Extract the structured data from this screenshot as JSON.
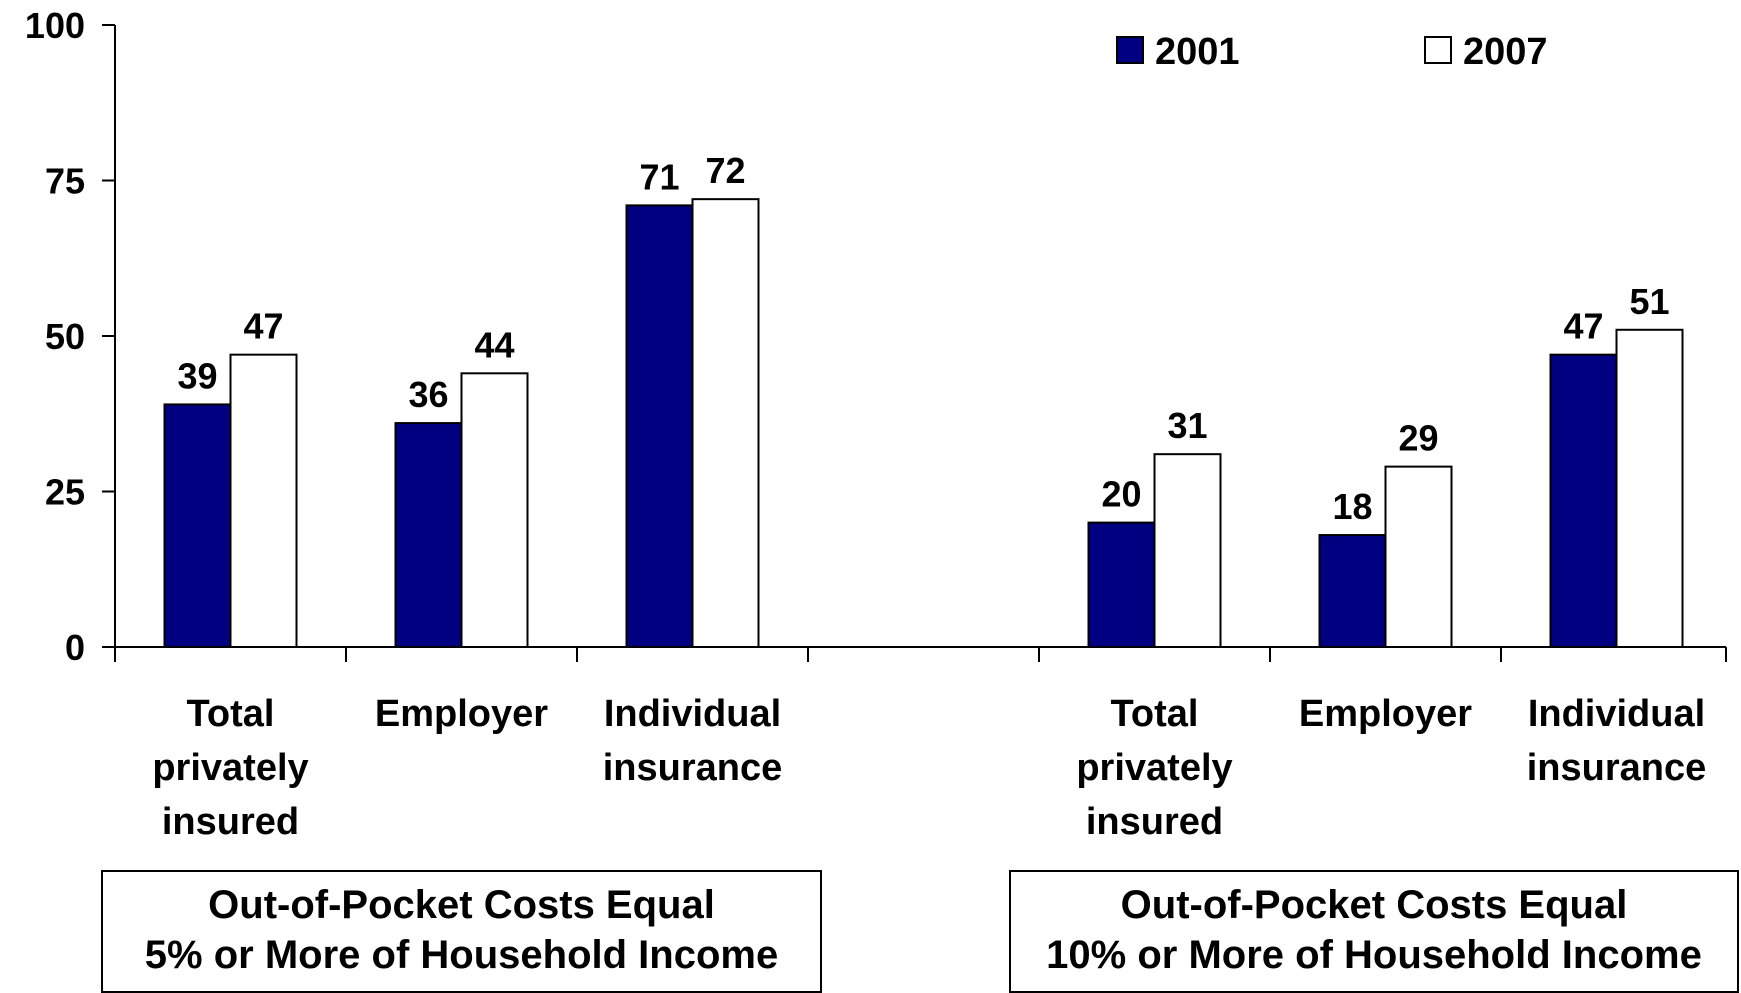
{
  "chart_data": {
    "type": "bar",
    "ylim": [
      0,
      100
    ],
    "yticks": [
      "0",
      "25",
      "50",
      "75",
      "100"
    ],
    "grid": false,
    "legend_placement": "top-right",
    "categories": [
      {
        "lines": [
          "Total",
          "privately",
          "insured"
        ]
      },
      {
        "lines": [
          "Employer"
        ]
      },
      {
        "lines": [
          "Individual",
          "insurance"
        ]
      },
      {
        "lines": [
          "Total",
          "privately",
          "insured"
        ]
      },
      {
        "lines": [
          "Employer"
        ]
      },
      {
        "lines": [
          "Individual",
          "insurance"
        ]
      }
    ],
    "series": [
      {
        "name": "2001",
        "color": "#000080",
        "values": [
          39,
          36,
          71,
          20,
          18,
          47
        ]
      },
      {
        "name": "2007",
        "color": "#ffffff",
        "values": [
          47,
          44,
          72,
          31,
          29,
          51
        ]
      }
    ],
    "groups": [
      {
        "lines": [
          "Out-of-Pocket Costs Equal",
          "5% or More of Household Income"
        ]
      },
      {
        "lines": [
          "Out-of-Pocket Costs Equal",
          "10% or More of Household Income"
        ]
      }
    ]
  }
}
